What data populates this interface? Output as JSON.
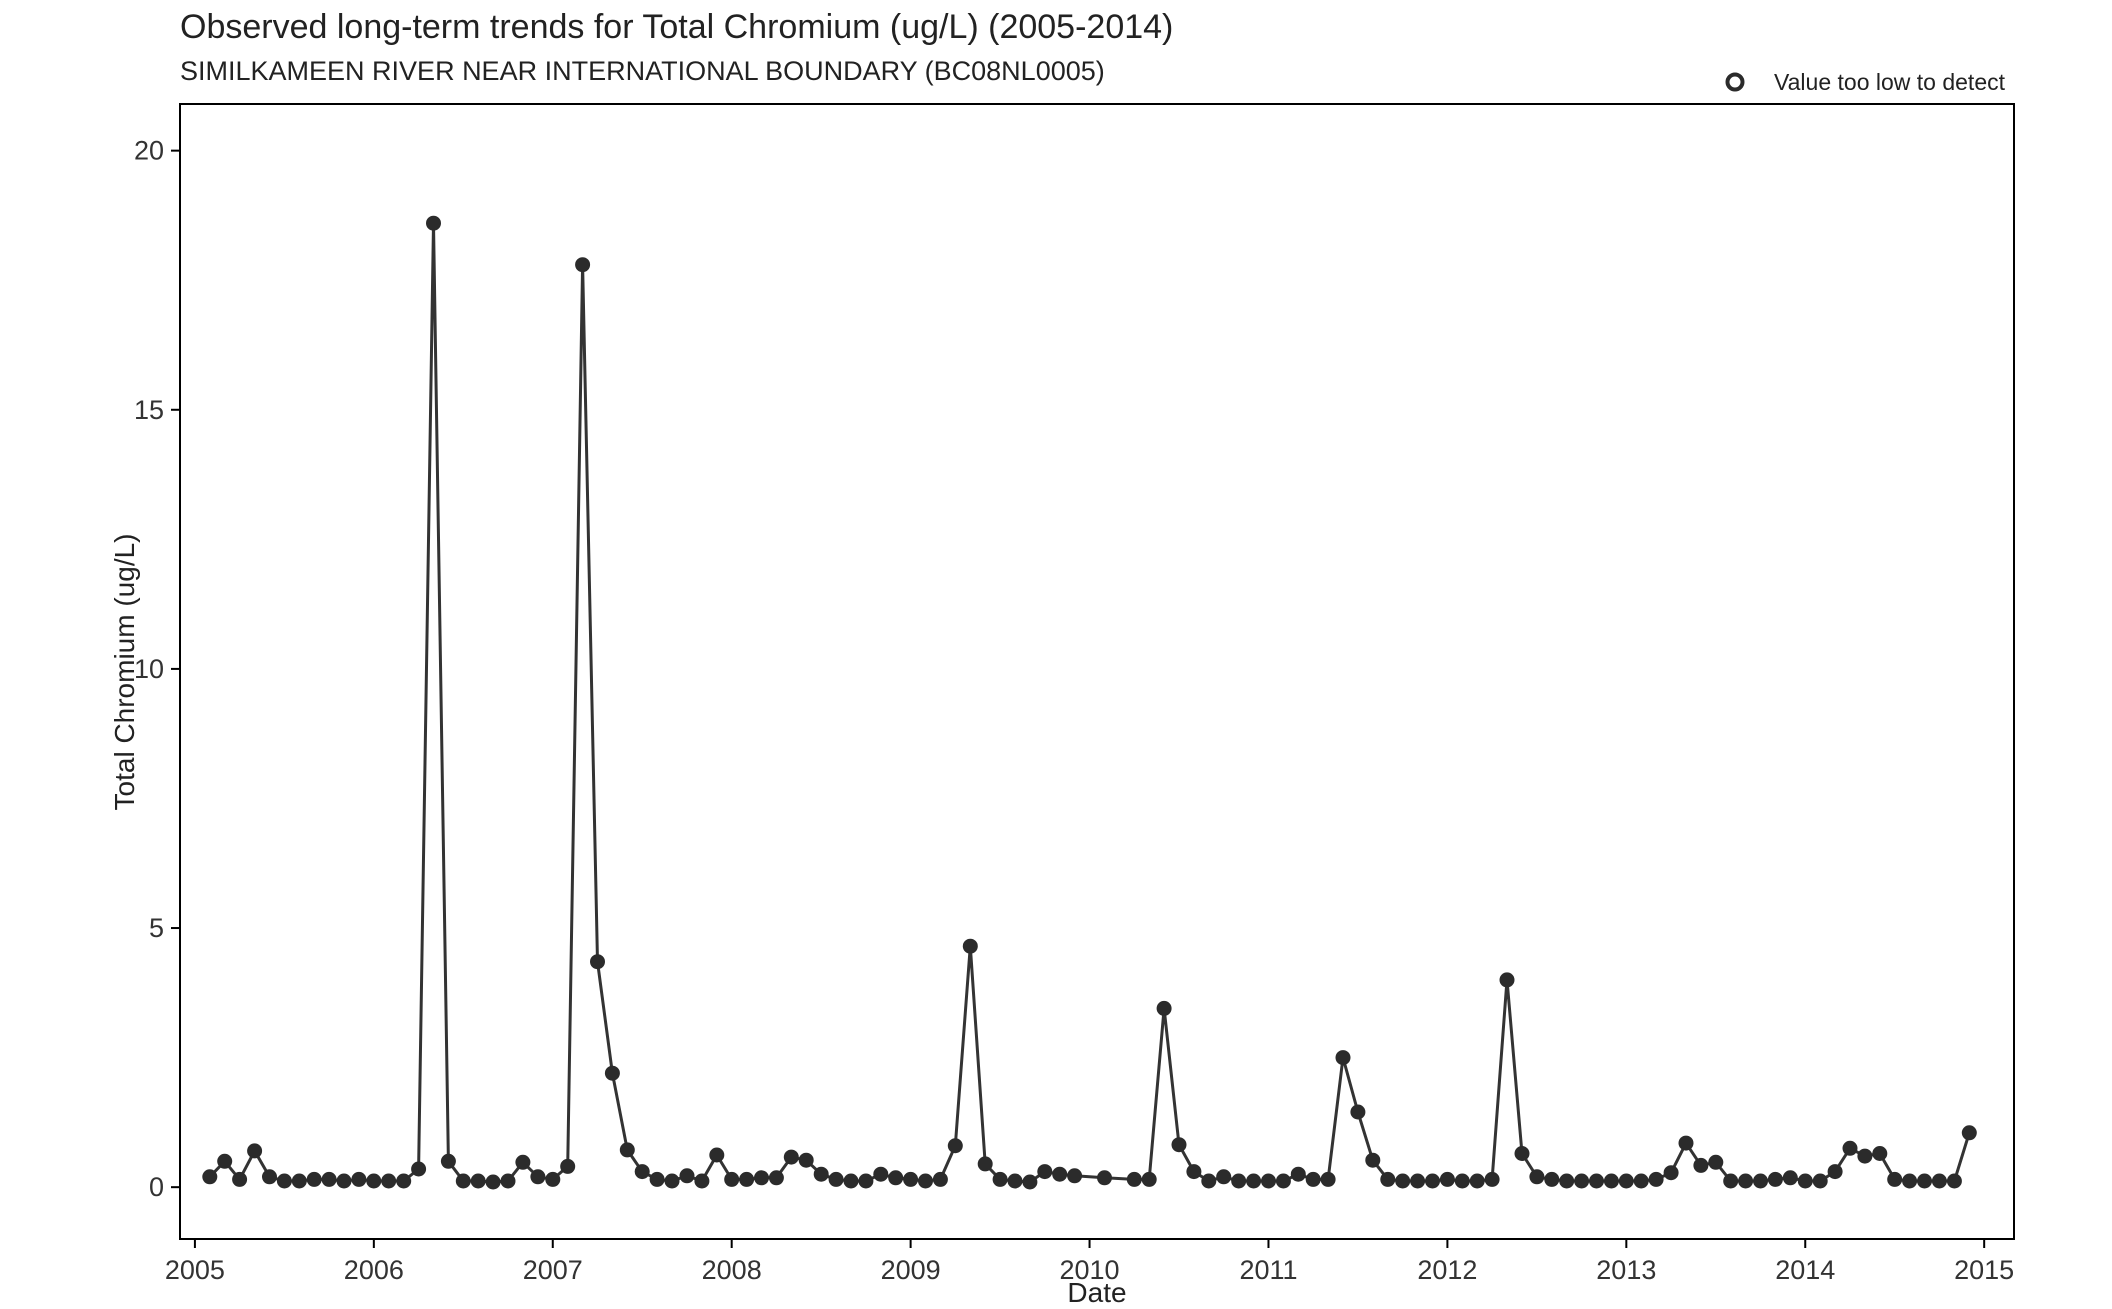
{
  "chart_data": {
    "type": "line",
    "title": "Observed long-term trends for Total Chromium (ug/L) (2005-2014)",
    "subtitle": "SIMILKAMEEN RIVER NEAR INTERNATIONAL BOUNDARY (BC08NL0005)",
    "xlabel": "Date",
    "ylabel": "Total Chromium (ug/L)",
    "xlim": [
      "2004-12",
      "2015-03"
    ],
    "ylim": [
      -1,
      20.9
    ],
    "x_ticks": [
      "2005",
      "2006",
      "2007",
      "2008",
      "2009",
      "2010",
      "2011",
      "2012",
      "2013",
      "2014",
      "2015"
    ],
    "y_ticks": [
      "0",
      "5",
      "10",
      "15",
      "20"
    ],
    "grid": false,
    "legend": {
      "position": "top-right",
      "entries": [
        "Value too low to detect"
      ]
    },
    "colors": {
      "line": "#333333",
      "point": "#2b2b2b",
      "axis": "#000000"
    },
    "series": [
      {
        "points": [
          [
            "2005-02",
            0.2
          ],
          [
            "2005-03",
            0.5
          ],
          [
            "2005-04",
            0.15
          ],
          [
            "2005-05",
            0.7
          ],
          [
            "2005-06",
            0.2
          ],
          [
            "2005-07",
            0.12
          ],
          [
            "2005-08",
            0.12
          ],
          [
            "2005-09",
            0.15
          ],
          [
            "2005-10",
            0.15
          ],
          [
            "2005-11",
            0.12
          ],
          [
            "2005-12",
            0.15
          ],
          [
            "2006-01",
            0.12
          ],
          [
            "2006-02",
            0.12
          ],
          [
            "2006-03",
            0.12
          ],
          [
            "2006-04",
            0.35
          ],
          [
            "2006-05",
            18.6
          ],
          [
            "2006-06",
            0.5
          ],
          [
            "2006-07",
            0.12
          ],
          [
            "2006-08",
            0.12
          ],
          [
            "2006-09",
            0.1
          ],
          [
            "2006-10",
            0.12
          ],
          [
            "2006-11",
            0.48
          ],
          [
            "2006-12",
            0.2
          ],
          [
            "2007-01",
            0.15
          ],
          [
            "2007-02",
            0.4
          ],
          [
            "2007-03",
            17.8
          ],
          [
            "2007-04",
            4.35
          ],
          [
            "2007-05",
            2.2
          ],
          [
            "2007-06",
            0.72
          ],
          [
            "2007-07",
            0.3
          ],
          [
            "2007-08",
            0.15
          ],
          [
            "2007-09",
            0.12
          ],
          [
            "2007-10",
            0.22
          ],
          [
            "2007-11",
            0.12
          ],
          [
            "2007-12",
            0.62
          ],
          [
            "2008-01",
            0.15
          ],
          [
            "2008-02",
            0.15
          ],
          [
            "2008-03",
            0.18
          ],
          [
            "2008-04",
            0.18
          ],
          [
            "2008-05",
            0.58
          ],
          [
            "2008-06",
            0.52
          ],
          [
            "2008-07",
            0.25
          ],
          [
            "2008-08",
            0.15
          ],
          [
            "2008-09",
            0.12
          ],
          [
            "2008-10",
            0.12
          ],
          [
            "2008-11",
            0.25
          ],
          [
            "2008-12",
            0.18
          ],
          [
            "2009-01",
            0.15
          ],
          [
            "2009-02",
            0.12
          ],
          [
            "2009-03",
            0.15
          ],
          [
            "2009-04",
            0.8
          ],
          [
            "2009-05",
            4.65
          ],
          [
            "2009-06",
            0.45
          ],
          [
            "2009-07",
            0.15
          ],
          [
            "2009-08",
            0.12
          ],
          [
            "2009-09",
            0.1
          ],
          [
            "2009-10",
            0.3
          ],
          [
            "2009-11",
            0.25
          ],
          [
            "2009-12",
            0.22
          ],
          [
            "2010-02",
            0.18
          ],
          [
            "2010-04",
            0.15
          ],
          [
            "2010-05",
            0.15
          ],
          [
            "2010-06",
            3.45
          ],
          [
            "2010-07",
            0.82
          ],
          [
            "2010-08",
            0.3
          ],
          [
            "2010-09",
            0.12
          ],
          [
            "2010-10",
            0.2
          ],
          [
            "2010-11",
            0.12
          ],
          [
            "2010-12",
            0.12
          ],
          [
            "2011-01",
            0.12
          ],
          [
            "2011-02",
            0.12
          ],
          [
            "2011-03",
            0.25
          ],
          [
            "2011-04",
            0.15
          ],
          [
            "2011-05",
            0.15
          ],
          [
            "2011-06",
            2.5
          ],
          [
            "2011-07",
            1.45
          ],
          [
            "2011-08",
            0.52
          ],
          [
            "2011-09",
            0.15
          ],
          [
            "2011-10",
            0.12
          ],
          [
            "2011-11",
            0.12
          ],
          [
            "2011-12",
            0.12
          ],
          [
            "2012-01",
            0.15
          ],
          [
            "2012-02",
            0.12
          ],
          [
            "2012-03",
            0.12
          ],
          [
            "2012-04",
            0.15
          ],
          [
            "2012-05",
            4.0
          ],
          [
            "2012-06",
            0.65
          ],
          [
            "2012-07",
            0.2
          ],
          [
            "2012-08",
            0.15
          ],
          [
            "2012-09",
            0.12
          ],
          [
            "2012-10",
            0.12
          ],
          [
            "2012-11",
            0.12
          ],
          [
            "2012-12",
            0.12
          ],
          [
            "2013-01",
            0.12
          ],
          [
            "2013-02",
            0.12
          ],
          [
            "2013-03",
            0.15
          ],
          [
            "2013-04",
            0.28
          ],
          [
            "2013-05",
            0.85
          ],
          [
            "2013-06",
            0.42
          ],
          [
            "2013-07",
            0.48
          ],
          [
            "2013-08",
            0.12
          ],
          [
            "2013-09",
            0.12
          ],
          [
            "2013-10",
            0.12
          ],
          [
            "2013-11",
            0.15
          ],
          [
            "2013-12",
            0.18
          ],
          [
            "2014-01",
            0.12
          ],
          [
            "2014-02",
            0.12
          ],
          [
            "2014-03",
            0.3
          ],
          [
            "2014-04",
            0.75
          ],
          [
            "2014-05",
            0.6
          ],
          [
            "2014-06",
            0.65
          ],
          [
            "2014-07",
            0.15
          ],
          [
            "2014-08",
            0.12
          ],
          [
            "2014-09",
            0.12
          ],
          [
            "2014-10",
            0.12
          ],
          [
            "2014-11",
            0.12
          ],
          [
            "2014-12",
            1.05
          ]
        ]
      }
    ]
  }
}
